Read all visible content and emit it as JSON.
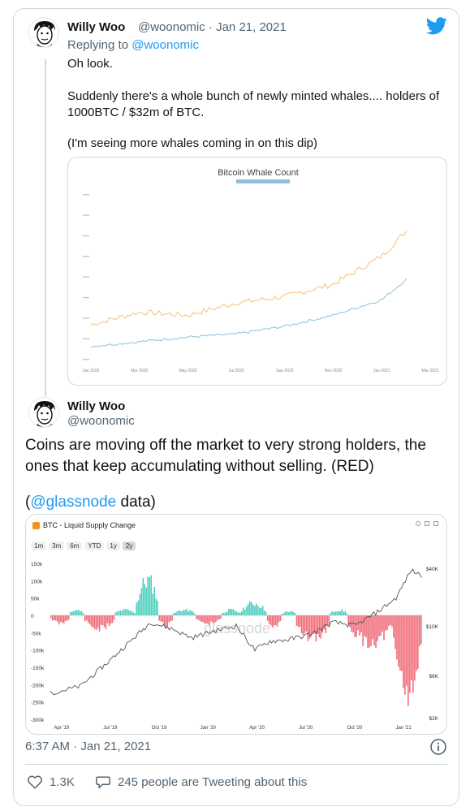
{
  "tweet1": {
    "author_name": "Willy Woo",
    "handle_date": "@woonomic · Jan 21, 2021",
    "replying_prefix": "Replying to ",
    "replying_handle": "@woonomic",
    "line1": "Oh look.",
    "line2": "Suddenly there's a whole bunch of newly minted whales.... holders of",
    "line3": "1000BTC / $32m of BTC.",
    "line4": "(I'm seeing more whales coming in on this dip)",
    "icons": [
      "twitter-logo-icon"
    ],
    "accent_color": "#1d9bf0",
    "chart_data": {
      "type": "line",
      "title": "Bitcoin Whale Count",
      "x": [
        "Jan 2020",
        "Mar 2020",
        "May 2020",
        "Jul 2020",
        "Sep 2020",
        "Nov 2020",
        "Jan 2021",
        "Mar 2021"
      ],
      "series": [
        {
          "color": "#f5c36b",
          "values": [
            1630,
            1670,
            1660,
            1700,
            1720,
            1760,
            1850,
            2010
          ]
        },
        {
          "color": "#8fbfdc",
          "values": [
            1560,
            1575,
            1590,
            1600,
            1625,
            1660,
            1710,
            1840
          ]
        }
      ],
      "grid": false
    }
  },
  "tweet2": {
    "author_name": "Willy Woo",
    "handle": "@woonomic",
    "line1": "Coins are moving off the market to very strong holders, the",
    "line2": "ones that keep accumulating without selling. (RED)",
    "line3_pre": "(",
    "line3_link": "@glassnode",
    "line3_post": " data)",
    "timestamp": "6:37 AM · Jan 21, 2021",
    "likes": "1.3K",
    "conversation": "245 people are Tweeting about this",
    "chart_data": {
      "type": "bar",
      "title": "BTC - Liquid Supply Change",
      "ranges": [
        "1m",
        "3m",
        "6m",
        "YTD",
        "1y",
        "2y"
      ],
      "selected_range": "2y",
      "watermark": "glassnode",
      "x_ticks": [
        "Apr '19",
        "Jul '19",
        "Oct '19",
        "Jan '20",
        "Apr '20",
        "Jul '20",
        "Oct '20",
        "Jan '21"
      ],
      "y_ticks": [
        "150k",
        "100k",
        "50k",
        "0",
        "-50k",
        "-100k",
        "-150k",
        "-200k",
        "-250k",
        "-300k"
      ],
      "y2_ticks": [
        "$40K",
        "$10K",
        "$6K",
        "$2K"
      ],
      "ylim": [
        -300000,
        150000
      ],
      "positive_color": "#4fcfbf",
      "negative_color": "#f06d7a",
      "price_color": "#555555",
      "segments": [
        {
          "from": 0.0,
          "to": 0.05,
          "level": -30000
        },
        {
          "from": 0.05,
          "to": 0.09,
          "level": 20000
        },
        {
          "from": 0.09,
          "to": 0.17,
          "level": -50000
        },
        {
          "from": 0.17,
          "to": 0.23,
          "level": 20000
        },
        {
          "from": 0.23,
          "to": 0.29,
          "level": 130000
        },
        {
          "from": 0.29,
          "to": 0.33,
          "level": -40000
        },
        {
          "from": 0.33,
          "to": 0.39,
          "level": 20000
        },
        {
          "from": 0.39,
          "to": 0.46,
          "level": -30000
        },
        {
          "from": 0.46,
          "to": 0.51,
          "level": 20000
        },
        {
          "from": 0.51,
          "to": 0.58,
          "level": 45000
        },
        {
          "from": 0.58,
          "to": 0.62,
          "level": -40000
        },
        {
          "from": 0.62,
          "to": 0.66,
          "level": 15000
        },
        {
          "from": 0.66,
          "to": 0.75,
          "level": -90000
        },
        {
          "from": 0.75,
          "to": 0.8,
          "level": 20000
        },
        {
          "from": 0.8,
          "to": 0.92,
          "level": -100000
        },
        {
          "from": 0.92,
          "to": 1.0,
          "level": -270000
        }
      ],
      "price_path": [
        {
          "x": 0.0,
          "y": -225000
        },
        {
          "x": 0.08,
          "y": -205000
        },
        {
          "x": 0.15,
          "y": -140000
        },
        {
          "x": 0.22,
          "y": -70000
        },
        {
          "x": 0.27,
          "y": -20000
        },
        {
          "x": 0.33,
          "y": -40000
        },
        {
          "x": 0.38,
          "y": -65000
        },
        {
          "x": 0.44,
          "y": -45000
        },
        {
          "x": 0.5,
          "y": -30000
        },
        {
          "x": 0.55,
          "y": -100000
        },
        {
          "x": 0.59,
          "y": -75000
        },
        {
          "x": 0.64,
          "y": -70000
        },
        {
          "x": 0.7,
          "y": -55000
        },
        {
          "x": 0.76,
          "y": -20000
        },
        {
          "x": 0.82,
          "y": -30000
        },
        {
          "x": 0.88,
          "y": 10000
        },
        {
          "x": 0.93,
          "y": 50000
        },
        {
          "x": 0.97,
          "y": 130000
        },
        {
          "x": 1.0,
          "y": 115000
        }
      ]
    }
  }
}
